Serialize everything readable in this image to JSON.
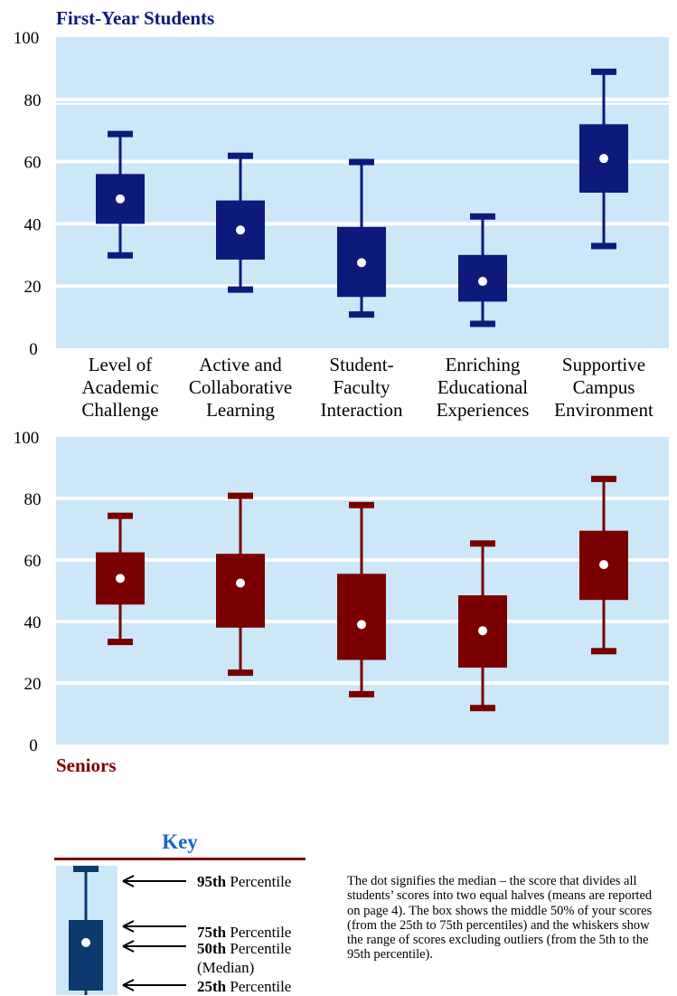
{
  "chart_data": [
    {
      "type": "box",
      "title": "First-Year Students",
      "ylim": [
        0,
        100
      ],
      "yticks": [
        0,
        20,
        40,
        60,
        80,
        100
      ],
      "categories": [
        [
          "Level of",
          "Academic",
          "Challenge"
        ],
        [
          "Active and",
          "Collaborative",
          "Learning"
        ],
        [
          "Student-",
          "Faculty",
          "Interaction"
        ],
        [
          "Enriching",
          "Educational",
          "Experiences"
        ],
        [
          "Supportive",
          "Campus",
          "Environment"
        ]
      ],
      "color": "#0d1a7c",
      "boxes": [
        {
          "p5": 30,
          "p25": 40,
          "median": 48,
          "p75": 56,
          "p95": 69
        },
        {
          "p5": 19,
          "p25": 28.5,
          "median": 38,
          "p75": 47.5,
          "p95": 62
        },
        {
          "p5": 11,
          "p25": 16.5,
          "median": 27.5,
          "p75": 39,
          "p95": 60
        },
        {
          "p5": 8,
          "p25": 15,
          "median": 21.5,
          "p75": 30,
          "p95": 42.5
        },
        {
          "p5": 33,
          "p25": 50,
          "median": 61,
          "p75": 72,
          "p95": 89
        }
      ]
    },
    {
      "type": "box",
      "title": "Seniors",
      "ylim": [
        0,
        100
      ],
      "yticks": [
        0,
        20,
        40,
        60,
        80,
        100
      ],
      "categories": [],
      "color": "#7a0000",
      "boxes": [
        {
          "p5": 33.5,
          "p25": 45.5,
          "median": 54,
          "p75": 62.5,
          "p95": 74.5
        },
        {
          "p5": 23.5,
          "p25": 38,
          "median": 52.5,
          "p75": 62,
          "p95": 81
        },
        {
          "p5": 16.5,
          "p25": 27.5,
          "median": 39,
          "p75": 55.5,
          "p95": 78
        },
        {
          "p5": 12,
          "p25": 25,
          "median": 37,
          "p75": 48.5,
          "p95": 65.5
        },
        {
          "p5": 30.5,
          "p25": 47,
          "median": 58.5,
          "p75": 69.5,
          "p95": 86.5
        }
      ]
    }
  ],
  "key": {
    "title": "Key",
    "items": [
      {
        "bold": "95th",
        "text": " Percentile"
      },
      {
        "bold": "75th",
        "text": " Percentile"
      },
      {
        "bold": "50th",
        "text": " Percentile",
        "sub": "(Median)"
      },
      {
        "bold": "25th",
        "text": " Percentile"
      }
    ],
    "description": "The dot signifies the median – the score that divides all students’ scores into two equal halves (means are reported on page 4). The box shows the middle 50% of your scores (from the 25th to 75th percentiles) and the whiskers show the range of scores excluding outliers (from the 5th to the 95th percentile).",
    "box_color": "#0d3a6e"
  }
}
